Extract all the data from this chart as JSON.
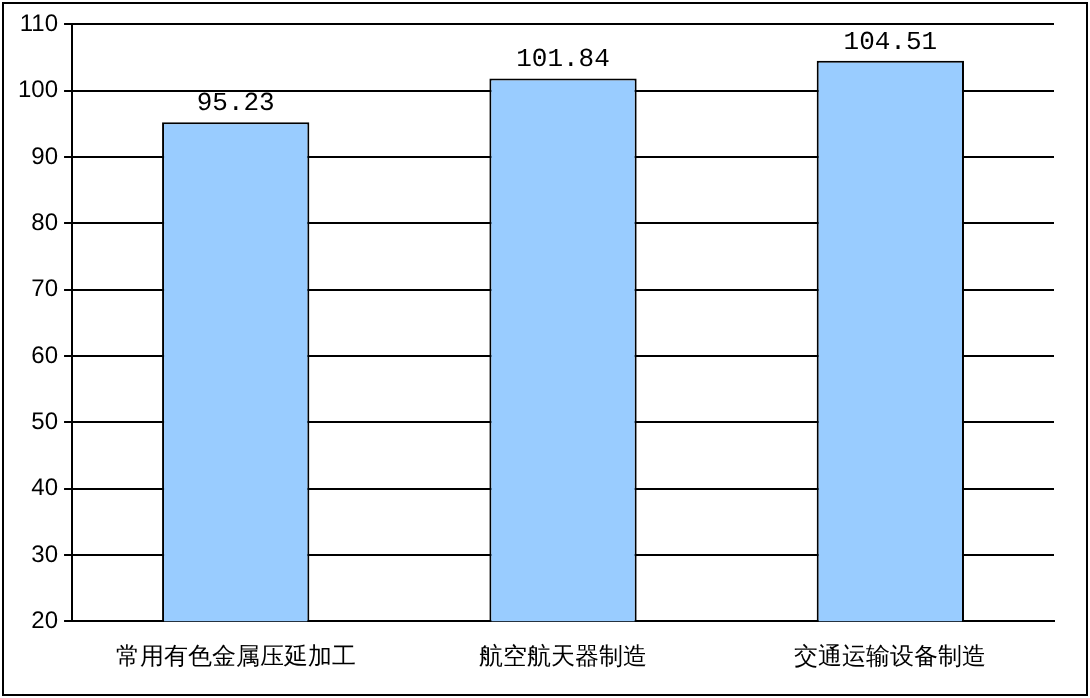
{
  "chart_data": {
    "type": "bar",
    "categories": [
      "常用有色金属压延加工",
      "航空航天器制造",
      "交通运输设备制造"
    ],
    "values": [
      95.23,
      101.84,
      104.51
    ],
    "color": "#99ccff",
    "ylim": [
      20,
      110
    ],
    "yticks": [
      20,
      30,
      40,
      50,
      60,
      70,
      80,
      90,
      100,
      110
    ],
    "grid": "y",
    "data_labels": true
  }
}
